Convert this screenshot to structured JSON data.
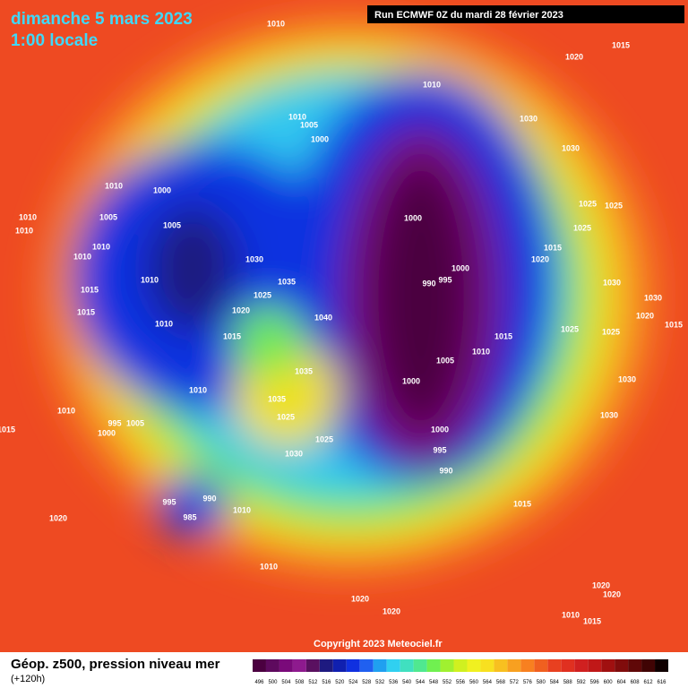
{
  "header": {
    "date": "dimanche 5 mars 2023",
    "time": "1:00 locale",
    "run": "Run ECMWF 0Z du mardi 28 février 2023"
  },
  "footer": {
    "title": "Géop. z500, pression niveau mer",
    "lead": "(+120h)",
    "copyright": "Copyright 2023 Meteociel.fr"
  },
  "legend": {
    "labels": [
      496,
      500,
      504,
      508,
      512,
      516,
      520,
      524,
      528,
      532,
      536,
      540,
      544,
      548,
      552,
      556,
      560,
      564,
      568,
      572,
      576,
      580,
      584,
      588,
      592,
      596,
      600,
      604,
      608,
      612,
      616
    ],
    "colors": [
      "#4b0040",
      "#5e0a5e",
      "#7a0a7a",
      "#8e1a8e",
      "#5a1060",
      "#1e1a80",
      "#1020b0",
      "#1030e0",
      "#2060f0",
      "#20a0f0",
      "#30d0f0",
      "#40e0c0",
      "#50e890",
      "#70f050",
      "#a0f030",
      "#d0f020",
      "#f0f020",
      "#f8e020",
      "#f8c020",
      "#f8a020",
      "#f88020",
      "#f06020",
      "#e84020",
      "#e03020",
      "#d02020",
      "#c01818",
      "#a01010",
      "#800c0c",
      "#600808",
      "#400404",
      "#100000"
    ]
  },
  "isobar_labels": [
    "1010",
    "1015",
    "1020",
    "1010",
    "1010",
    "1005",
    "1030",
    "1000",
    "1030",
    "1010",
    "1000",
    "1010",
    "1005",
    "1005",
    "1000",
    "1025",
    "1025",
    "1010",
    "1025",
    "1010",
    "1010",
    "1030",
    "1015",
    "1020",
    "1000",
    "990",
    "995",
    "1010",
    "1035",
    "1015",
    "1025",
    "1020",
    "1015",
    "1040",
    "1030",
    "1030",
    "1020",
    "1015",
    "1010",
    "1025",
    "1025",
    "1015",
    "1015",
    "1010",
    "1005",
    "1035",
    "1000",
    "1030",
    "1010",
    "1035",
    "1025",
    "1010",
    "995",
    "1005",
    "1030",
    "1000",
    "1015",
    "1000",
    "1025",
    "995",
    "1030",
    "990",
    "990",
    "995",
    "1015",
    "985",
    "1010",
    "1020",
    "1010",
    "1020",
    "1020",
    "1020",
    "1020",
    "1010",
    "1015"
  ]
}
